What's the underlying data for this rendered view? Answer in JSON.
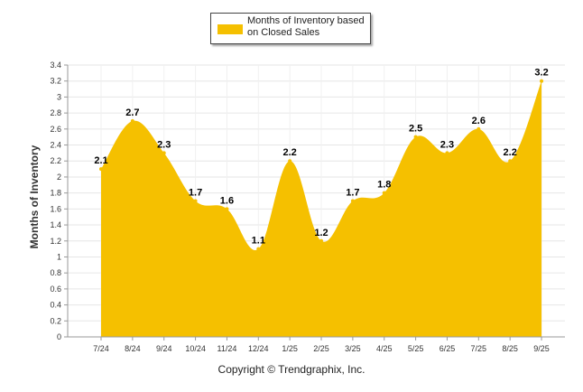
{
  "chart_data": {
    "type": "area",
    "title": "",
    "legend": [
      {
        "label": "Months of Inventory based on Closed Sales",
        "color": "#f5c000"
      }
    ],
    "legend_position": "top-center",
    "categories": [
      "7/24",
      "8/24",
      "9/24",
      "10/24",
      "11/24",
      "12/24",
      "1/25",
      "2/25",
      "3/25",
      "4/25",
      "5/25",
      "6/25",
      "7/25",
      "8/25",
      "9/25"
    ],
    "values": [
      2.1,
      2.7,
      2.3,
      1.7,
      1.6,
      1.1,
      2.2,
      1.2,
      1.7,
      1.8,
      2.5,
      2.3,
      2.6,
      2.2,
      3.2
    ],
    "data_labels": [
      "2.1",
      "2.7",
      "2.3",
      "1.7",
      "1.6",
      "1.1",
      "2.2",
      "1.2",
      "1.7",
      "1.8",
      "2.5",
      "2.3",
      "2.6",
      "2.2",
      "3.2"
    ],
    "ylabel": "Months of Inventory",
    "xlabel": "",
    "ylim": [
      0,
      3.4
    ],
    "yticks": [
      "0",
      "0.2",
      "0.4",
      "0.6",
      "0.8",
      "1",
      "1.2",
      "1.4",
      "1.6",
      "1.8",
      "2",
      "2.2",
      "2.4",
      "2.6",
      "2.8",
      "3",
      "3.2",
      "3.4"
    ],
    "grid": true,
    "fill_color": "#f5c000"
  },
  "copyright": "Copyright © Trendgraphix, Inc."
}
